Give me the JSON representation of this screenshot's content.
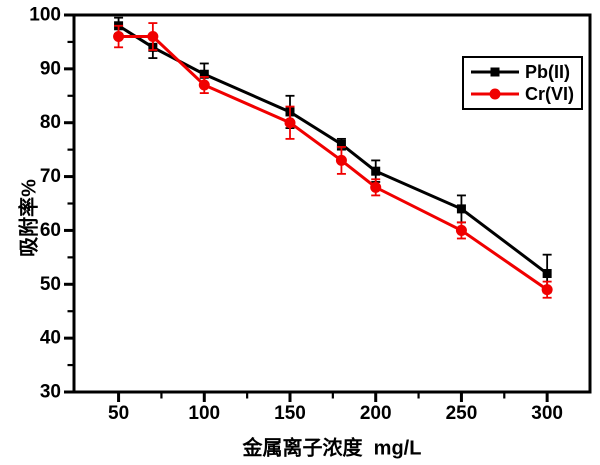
{
  "chart_data": {
    "type": "line",
    "title": "",
    "xlabel": "金属离子浓度  mg/L",
    "ylabel": "吸附率%",
    "x": [
      50,
      70,
      100,
      150,
      180,
      200,
      250,
      300
    ],
    "series": [
      {
        "name": "Pb(II)",
        "color": "#000000",
        "marker": "square",
        "values": [
          98,
          94,
          89,
          82,
          76,
          71,
          64,
          52
        ],
        "errors": [
          1.5,
          2,
          2,
          3,
          1,
          2,
          2.5,
          3.5
        ]
      },
      {
        "name": "Cr(VI)",
        "color": "#f00000",
        "marker": "circle",
        "values": [
          96,
          96,
          87,
          80,
          73,
          68,
          60,
          49
        ],
        "errors": [
          2,
          2.5,
          1.5,
          3,
          2.5,
          1.5,
          1.5,
          1.5
        ]
      }
    ],
    "xlim": [
      24,
      325
    ],
    "ylim": [
      30,
      100
    ],
    "xticks": {
      "major": [
        50,
        100,
        150,
        200,
        250,
        300
      ],
      "minor": [
        75,
        125,
        175,
        225,
        275
      ]
    },
    "yticks": {
      "major": [
        30,
        40,
        50,
        60,
        70,
        80,
        90,
        100
      ],
      "minor": [
        35,
        45,
        55,
        65,
        75,
        85,
        95
      ]
    },
    "grid": false,
    "legend_position": "upper-right",
    "background": "#ffffff",
    "frame_color": "#000000"
  }
}
